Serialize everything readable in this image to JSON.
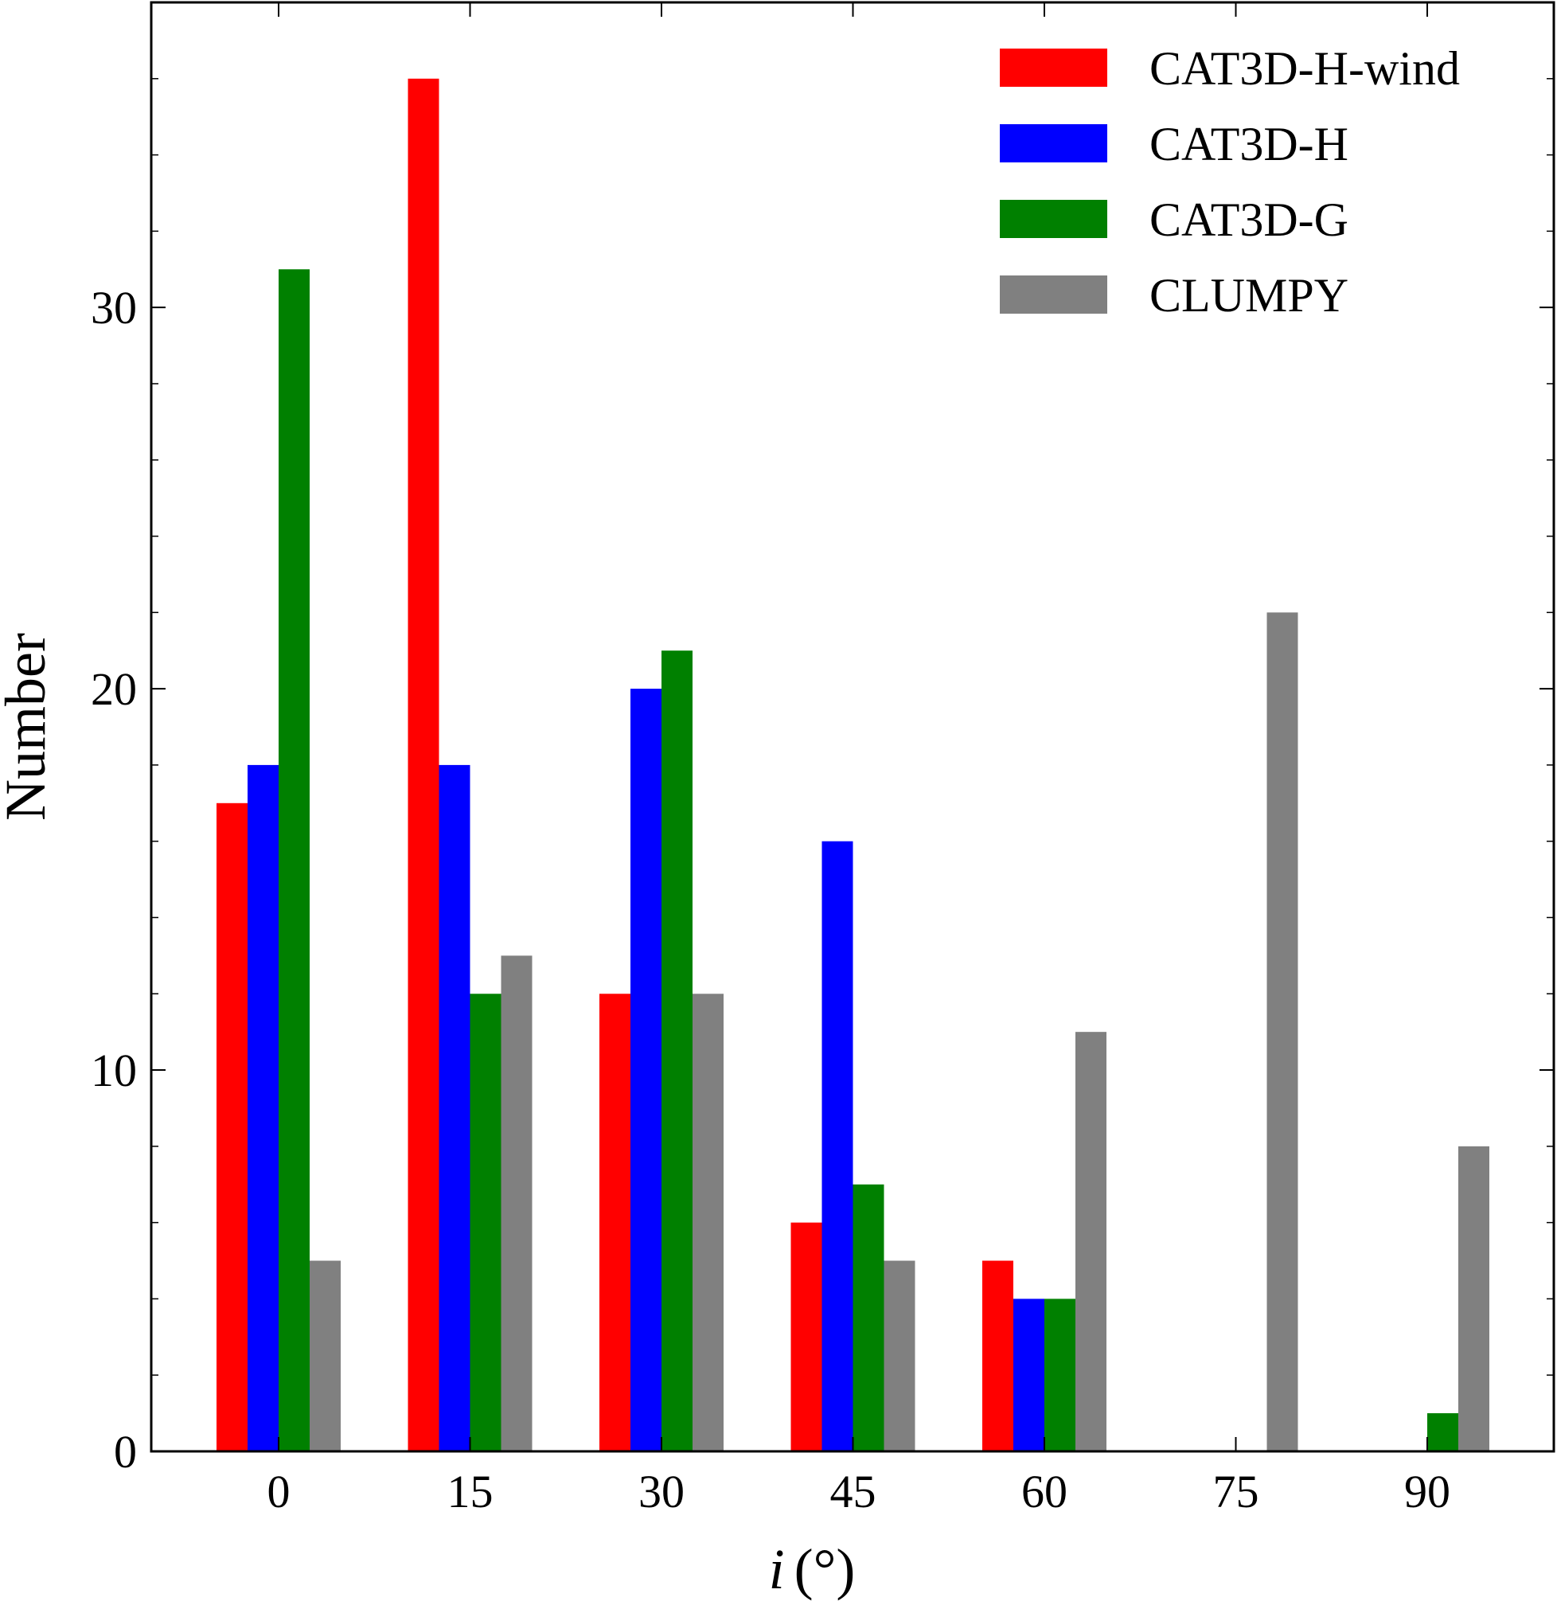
{
  "chart_data": {
    "type": "bar",
    "title": "",
    "xlabel": {
      "var": "i",
      "unit": "(°)"
    },
    "ylabel": "Number",
    "categories": [
      "0",
      "15",
      "30",
      "45",
      "60",
      "75",
      "90"
    ],
    "ylim": [
      0,
      38
    ],
    "yticks": [
      "0",
      "10",
      "20",
      "30"
    ],
    "ytick_values": [
      0,
      10,
      20,
      30
    ],
    "legend_position": "top-right",
    "grid": false,
    "series": [
      {
        "name": "CAT3D-H-wind",
        "color": "#ff0000",
        "values": [
          17,
          36,
          12,
          6,
          5,
          0,
          0
        ]
      },
      {
        "name": "CAT3D-H",
        "color": "#0000ff",
        "values": [
          18,
          18,
          20,
          16,
          4,
          0,
          0
        ]
      },
      {
        "name": "CAT3D-G",
        "color": "#008000",
        "values": [
          31,
          12,
          21,
          7,
          4,
          0,
          1
        ]
      },
      {
        "name": "CLUMPY",
        "color": "#808080",
        "values": [
          5,
          13,
          12,
          5,
          11,
          22,
          8
        ]
      }
    ]
  }
}
